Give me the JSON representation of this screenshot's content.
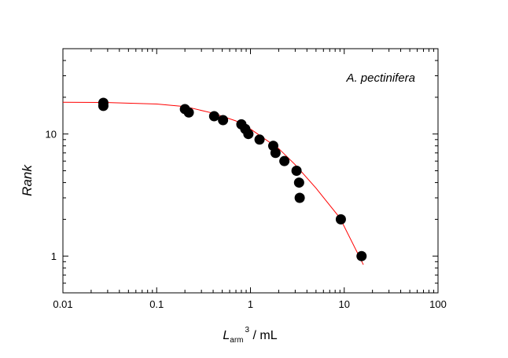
{
  "chart_data": {
    "type": "scatter",
    "title": "",
    "annotation": "A. pectinifera",
    "xlabel": {
      "main": "L",
      "subscript": "arm",
      "superscript": "3",
      "suffix": " / mL"
    },
    "ylabel": "Rank",
    "xscale": "log",
    "yscale": "log",
    "xlim": [
      0.01,
      100
    ],
    "ylim": [
      0.5,
      50
    ],
    "xticks": [
      {
        "value": 0.01,
        "label": "0.01"
      },
      {
        "value": 0.1,
        "label": "0.1"
      },
      {
        "value": 1,
        "label": "1"
      },
      {
        "value": 10,
        "label": "10"
      },
      {
        "value": 100,
        "label": "100"
      }
    ],
    "yticks": [
      {
        "value": 1,
        "label": "1"
      },
      {
        "value": 10,
        "label": "10"
      }
    ],
    "grid": false,
    "series": [
      {
        "name": "data",
        "marker": "filled-circle",
        "color": "#000000",
        "points": [
          [
            0.027,
            18
          ],
          [
            0.027,
            17
          ],
          [
            0.2,
            16
          ],
          [
            0.22,
            15
          ],
          [
            0.41,
            14
          ],
          [
            0.51,
            13
          ],
          [
            0.8,
            12
          ],
          [
            0.88,
            11
          ],
          [
            0.95,
            10
          ],
          [
            1.25,
            9
          ],
          [
            1.75,
            8
          ],
          [
            1.85,
            7
          ],
          [
            2.3,
            6
          ],
          [
            3.1,
            5
          ],
          [
            3.3,
            4
          ],
          [
            3.35,
            3
          ],
          [
            9.2,
            2
          ],
          [
            15.3,
            1
          ]
        ]
      },
      {
        "name": "fit",
        "marker": "line",
        "color": "#ff0000",
        "points": [
          [
            0.01,
            18.2
          ],
          [
            0.03,
            18.1
          ],
          [
            0.1,
            17.6
          ],
          [
            0.2,
            16.8
          ],
          [
            0.4,
            14.8
          ],
          [
            0.7,
            12.8
          ],
          [
            1,
            11
          ],
          [
            2,
            7.6
          ],
          [
            3,
            5.6
          ],
          [
            5,
            3.6
          ],
          [
            9,
            2.05
          ],
          [
            16,
            0.85
          ]
        ]
      }
    ]
  }
}
